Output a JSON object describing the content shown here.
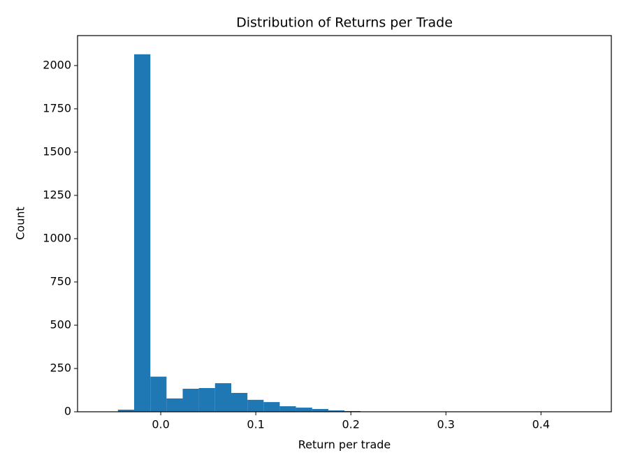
{
  "chart_data": {
    "type": "histogram",
    "title": "Distribution of Returns per Trade",
    "x_label": "Return per trade",
    "y_label": "Count",
    "color": "#1f77b4",
    "bins": [
      -0.062,
      -0.045,
      -0.028,
      -0.0109,
      0.0061,
      0.0231,
      0.0401,
      0.0571,
      0.0742,
      0.0912,
      0.1082,
      0.1252,
      0.1422,
      0.1593,
      0.1763,
      0.1933,
      0.2103,
      0.2273,
      0.2444,
      0.2614,
      0.2784,
      0.2954,
      0.3124,
      0.3295,
      0.3465,
      0.3635,
      0.3805,
      0.3975,
      0.4146,
      0.4316,
      0.4486
    ],
    "values": [
      0,
      12,
      2065,
      203,
      77,
      133,
      137,
      165,
      109,
      69,
      56,
      32,
      24,
      16,
      8,
      4,
      2,
      1,
      1,
      0,
      0,
      1,
      0,
      0,
      0,
      0,
      0,
      0,
      0,
      1
    ],
    "xlim": [
      -0.0875,
      0.474
    ],
    "ylim": [
      0,
      2173
    ],
    "xticks": [
      {
        "value": 0,
        "label": "0.0"
      },
      0.1,
      0.2,
      0.3,
      0.4
    ],
    "yticks": [
      0,
      250,
      500,
      750,
      1000,
      1250,
      1500,
      1750,
      2000
    ]
  }
}
